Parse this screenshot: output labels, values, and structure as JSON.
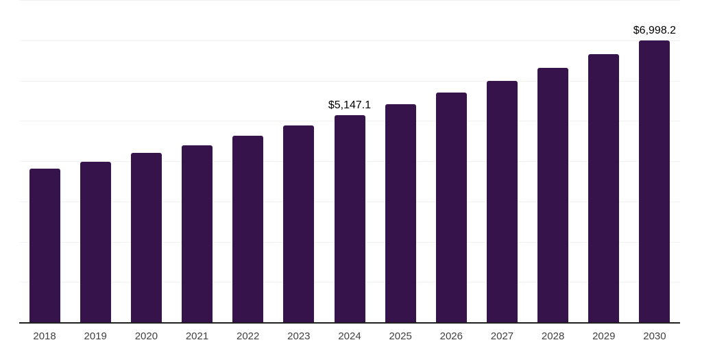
{
  "chart": {
    "background_color": "#ffffff",
    "bar_color": "#36144b",
    "grid_color": "#f1f1f1",
    "axis_color": "#1f1f1f",
    "tick_label_color": "#404040",
    "data_label_color": "#000000"
  },
  "chart_data": {
    "type": "bar",
    "title": "",
    "xlabel": "",
    "ylabel": "",
    "categories": [
      "2018",
      "2019",
      "2020",
      "2021",
      "2022",
      "2023",
      "2024",
      "2025",
      "2026",
      "2027",
      "2028",
      "2029",
      "2030"
    ],
    "values": [
      3810,
      3985,
      4205,
      4395,
      4630,
      4880,
      5147.1,
      5415,
      5705,
      5995,
      6318,
      6655,
      6998.2
    ],
    "annotations": [
      {
        "category": "2024",
        "text": "$5,147.1"
      },
      {
        "category": "2030",
        "text": "$6,998.2"
      }
    ],
    "ylim": [
      0,
      8000
    ],
    "grid_step": 1000,
    "grid": true,
    "legend": false,
    "y_axis_labels_visible": false
  }
}
